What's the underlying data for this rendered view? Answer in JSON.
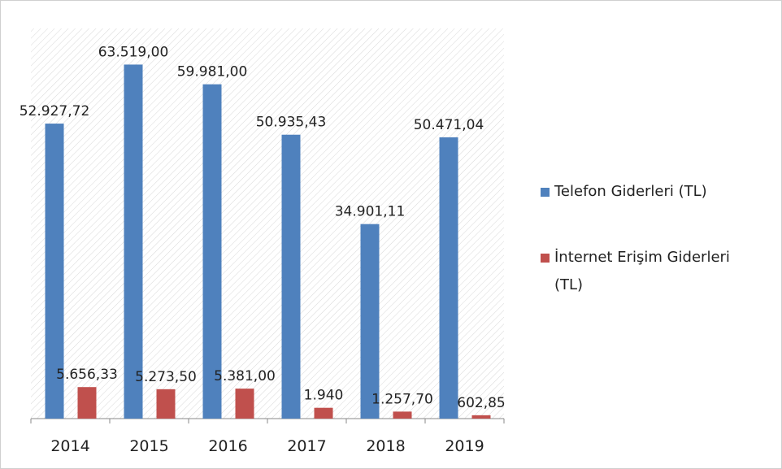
{
  "chart_data": {
    "type": "bar",
    "categories": [
      "2014",
      "2015",
      "2016",
      "2017",
      "2018",
      "2019"
    ],
    "series": [
      {
        "name": "Telefon Giderleri (TL)",
        "color": "#4f81bd",
        "values": [
          52927.72,
          63519,
          59981,
          50935.43,
          34901.11,
          50471.04
        ],
        "value_labels": [
          "52.927,72",
          "63.519,00",
          "59.981,00",
          "50.935,43",
          "34.901,11",
          "50.471,04"
        ]
      },
      {
        "name": "İnternet Erişim Giderleri (TL)",
        "color": "#c0504d",
        "values": [
          5656.33,
          5273.5,
          5381,
          1940,
          1257.7,
          602.85
        ],
        "value_labels": [
          "5.656,33",
          "5.273,50",
          "5.381,00",
          "1.940",
          "1.257,70",
          "602,85"
        ]
      }
    ],
    "ylim": [
      0,
      70000
    ],
    "legend": "right"
  }
}
